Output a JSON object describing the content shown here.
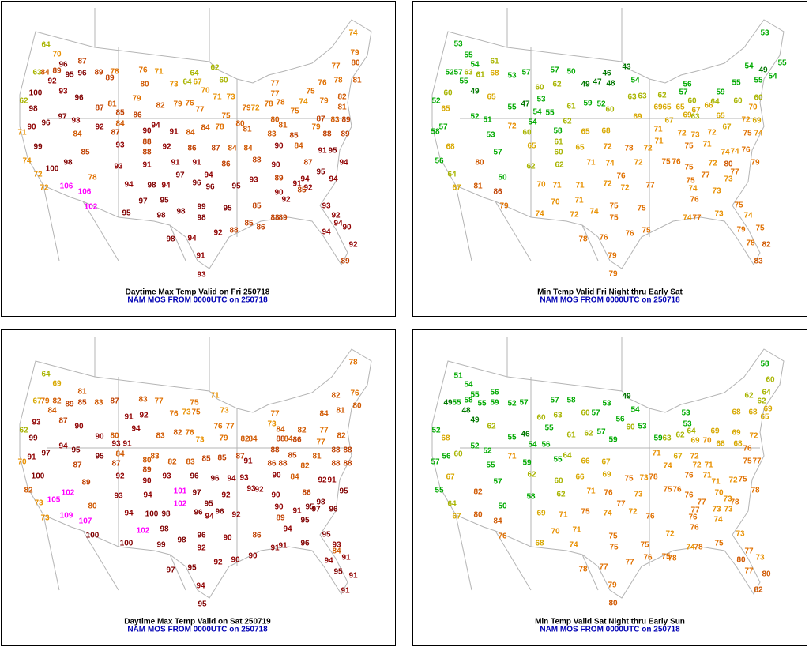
{
  "panels": [
    {
      "title": "Daytime Max Temp Valid on Fri 250718",
      "subtitle": "NAM MOS FROM 0000UTC on 250718",
      "temperatures": [
        64,
        70,
        96,
        87,
        63,
        84,
        89,
        95,
        96,
        89,
        78,
        89,
        76,
        71,
        64,
        62,
        92,
        80,
        73,
        64,
        67,
        60,
        70,
        100,
        93,
        96,
        79,
        62,
        87,
        81,
        82,
        79,
        76,
        77,
        71,
        73,
        77,
        77,
        76,
        78,
        81,
        75,
        74,
        79,
        80,
        77,
        74,
        79,
        82,
        81,
        98,
        97,
        93,
        85,
        86,
        80,
        79,
        72,
        78,
        78,
        75,
        75,
        80,
        81,
        87,
        83,
        89,
        96,
        92,
        84,
        94,
        90,
        91,
        84,
        84,
        78,
        81,
        90,
        71,
        84,
        87,
        85,
        79,
        88,
        89,
        90,
        84,
        93,
        88,
        92,
        86,
        87,
        84,
        84,
        83,
        91,
        95,
        99,
        85,
        88,
        74,
        98,
        93,
        91,
        91,
        91,
        86,
        88,
        90,
        87,
        95,
        94,
        100,
        72,
        78,
        97,
        94,
        93,
        89,
        94,
        94,
        91,
        92,
        72,
        106,
        94,
        98,
        94,
        96,
        96,
        95,
        90,
        85,
        106,
        102,
        97,
        95,
        99,
        95,
        85,
        92,
        93,
        95,
        98,
        98,
        98,
        88,
        89,
        92,
        94,
        85,
        86,
        88,
        94,
        90,
        98,
        94,
        92,
        92,
        91,
        89,
        93
      ]
    },
    {
      "title": "Min Temp Valid Fri Night thru Early Sat",
      "subtitle": "NAM MOS FROM 0000UTC on 250718",
      "temperatures": [
        53,
        53,
        55,
        54,
        61,
        55,
        54,
        49,
        52,
        57,
        63,
        61,
        68,
        53,
        57,
        57,
        50,
        43,
        46,
        54,
        55,
        55,
        59,
        55,
        62,
        60,
        49,
        47,
        48,
        54,
        56,
        60,
        49,
        65,
        53,
        61,
        59,
        52,
        60,
        57,
        63,
        63,
        62,
        60,
        64,
        60,
        60,
        52,
        65,
        55,
        47,
        54,
        55,
        69,
        65,
        65,
        67,
        66,
        70,
        52,
        51,
        72,
        54,
        60,
        58,
        62,
        65,
        68,
        69,
        71,
        67,
        69,
        63,
        65,
        67,
        69,
        72,
        57,
        58,
        53,
        75,
        74,
        72,
        73,
        72,
        61,
        65,
        65,
        72,
        78,
        72,
        71,
        75,
        71,
        74,
        76,
        68,
        57,
        60,
        56,
        80,
        62,
        62,
        71,
        74,
        72,
        75,
        76,
        75,
        72,
        74,
        79,
        80,
        64,
        50,
        70,
        71,
        71,
        72,
        76,
        72,
        77,
        75,
        77,
        74,
        73,
        77,
        73,
        67,
        81,
        86,
        70,
        71,
        76,
        75,
        79,
        74,
        72,
        74,
        75,
        75,
        74,
        77,
        73,
        74,
        75,
        75,
        79,
        75,
        78,
        76,
        76,
        78,
        82,
        79,
        83,
        79
      ]
    },
    {
      "title": "Daytime Max Temp Valid on Sat 250719",
      "subtitle": "NAM MOS FROM 0000UTC on 250718",
      "temperatures": [
        64,
        78,
        69,
        81,
        76,
        67,
        79,
        82,
        89,
        85,
        83,
        87,
        83,
        77,
        75,
        71,
        82,
        81,
        80,
        84,
        91,
        92,
        76,
        73,
        75,
        73,
        77,
        84,
        62,
        87,
        93,
        90,
        94,
        76,
        77,
        73,
        84,
        82,
        77,
        82,
        99,
        90,
        80,
        83,
        82,
        76,
        73,
        82,
        84,
        79,
        88,
        84,
        86,
        91,
        97,
        95,
        94,
        95,
        93,
        91,
        84,
        87,
        83,
        80,
        82,
        83,
        85,
        85,
        87,
        91,
        88,
        85,
        86,
        88,
        88,
        88,
        88,
        88,
        77,
        81,
        82,
        70,
        87,
        89,
        100,
        92,
        93,
        96,
        96,
        94,
        93,
        90,
        84,
        92,
        91,
        89,
        90,
        102,
        105,
        101,
        97,
        92,
        93,
        92,
        90,
        86,
        95,
        73,
        93,
        94,
        102,
        95,
        96,
        94,
        96,
        92,
        82,
        109,
        80,
        90,
        98,
        95,
        91,
        97,
        96,
        73,
        107,
        94,
        100,
        98,
        89,
        95,
        102,
        98,
        100,
        94,
        96,
        92,
        98,
        99,
        100,
        90,
        86,
        91,
        91,
        96,
        95,
        93,
        84,
        91,
        90,
        92,
        90,
        94,
        97,
        95,
        95,
        91,
        94,
        91,
        95
      ]
    },
    {
      "title": "Min Temp Valid Sat Night thru Early Sun",
      "subtitle": "NAM MOS FROM 0000UTC on 250718",
      "temperatures": [
        58,
        51,
        54,
        60,
        55,
        56,
        58,
        55,
        59,
        52,
        57,
        57,
        58,
        53,
        49,
        62,
        64,
        62,
        69,
        49,
        55,
        48,
        54,
        57,
        60,
        56,
        60,
        63,
        53,
        53,
        68,
        68,
        65,
        49,
        62,
        55,
        60,
        53,
        52,
        68,
        55,
        46,
        61,
        62,
        57,
        59,
        63,
        62,
        64,
        69,
        70,
        68,
        68,
        69,
        69,
        72,
        59,
        52,
        52,
        54,
        56,
        71,
        55,
        64,
        66,
        67,
        71,
        67,
        72,
        72,
        71,
        75,
        77,
        76,
        57,
        60,
        56,
        55,
        59,
        62,
        60,
        69,
        75,
        73,
        78,
        74,
        76,
        71,
        71,
        72,
        75,
        66,
        67,
        57,
        62,
        55,
        71,
        76,
        73,
        75,
        76,
        76,
        77,
        70,
        73,
        78,
        64,
        50,
        58,
        69,
        71,
        75,
        74,
        77,
        72,
        76,
        77,
        76,
        73,
        78,
        73,
        67,
        82,
        80,
        84,
        70,
        71,
        75,
        72,
        76,
        74,
        73,
        76,
        68,
        74,
        75,
        75,
        74,
        78,
        75,
        77,
        73,
        77,
        76,
        75,
        78,
        80,
        80,
        78,
        77,
        77,
        79,
        82,
        80
      ]
    }
  ]
}
